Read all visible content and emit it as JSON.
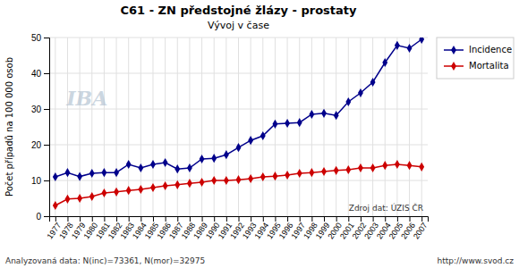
{
  "chart_data": {
    "type": "line",
    "title": "C61 - ZN předstojné žlázy - prostaty",
    "subtitle": "Vývoj v čase",
    "ylabel": "Počet případů na 100 000 osob",
    "annotations": [
      "Zdroj dat: ÚZIS ČR",
      "Analyzovaná data: N(inc)=73361, N(mor)=32975",
      "http://www.svod.cz",
      "IBA"
    ],
    "x": [
      1977,
      1978,
      1979,
      1980,
      1981,
      1982,
      1983,
      1984,
      1985,
      1986,
      1987,
      1988,
      1989,
      1990,
      1991,
      1992,
      1993,
      1994,
      1995,
      1996,
      1997,
      1998,
      1999,
      2000,
      2001,
      2002,
      2003,
      2004,
      2005,
      2006,
      2007
    ],
    "series": [
      {
        "name": "Incidence",
        "color": "#00008B",
        "marker": "diamond",
        "values": [
          11.0,
          12.2,
          11.1,
          12.0,
          12.2,
          12.2,
          14.5,
          13.5,
          14.5,
          15.0,
          13.2,
          13.5,
          16.0,
          16.2,
          17.2,
          19.2,
          21.2,
          22.5,
          25.8,
          26.0,
          26.2,
          28.5,
          28.8,
          28.2,
          32.0,
          34.5,
          37.5,
          43.0,
          47.8,
          47.0,
          49.5
        ]
      },
      {
        "name": "Mortalita",
        "color": "#CC0000",
        "marker": "diamond",
        "values": [
          3.0,
          4.8,
          5.0,
          5.5,
          6.5,
          6.8,
          7.2,
          7.5,
          8.0,
          8.5,
          8.8,
          9.2,
          9.5,
          10.0,
          10.0,
          10.2,
          10.5,
          11.0,
          11.2,
          11.5,
          12.0,
          12.2,
          12.5,
          12.8,
          13.0,
          13.5,
          13.5,
          14.2,
          14.5,
          14.2,
          13.8
        ]
      }
    ],
    "xlim": [
      1976.5,
      2007.5
    ],
    "xticks": [
      1977,
      1978,
      1979,
      1980,
      1981,
      1982,
      1983,
      1984,
      1985,
      1986,
      1987,
      1988,
      1989,
      1990,
      1991,
      1992,
      1993,
      1994,
      1995,
      1996,
      1997,
      1998,
      1999,
      2000,
      2001,
      2002,
      2003,
      2004,
      2005,
      2006,
      2007
    ],
    "ylim": [
      0,
      50
    ],
    "yticks": [
      0,
      10,
      20,
      30,
      40,
      50
    ],
    "grid": true,
    "legend": "upper right"
  }
}
